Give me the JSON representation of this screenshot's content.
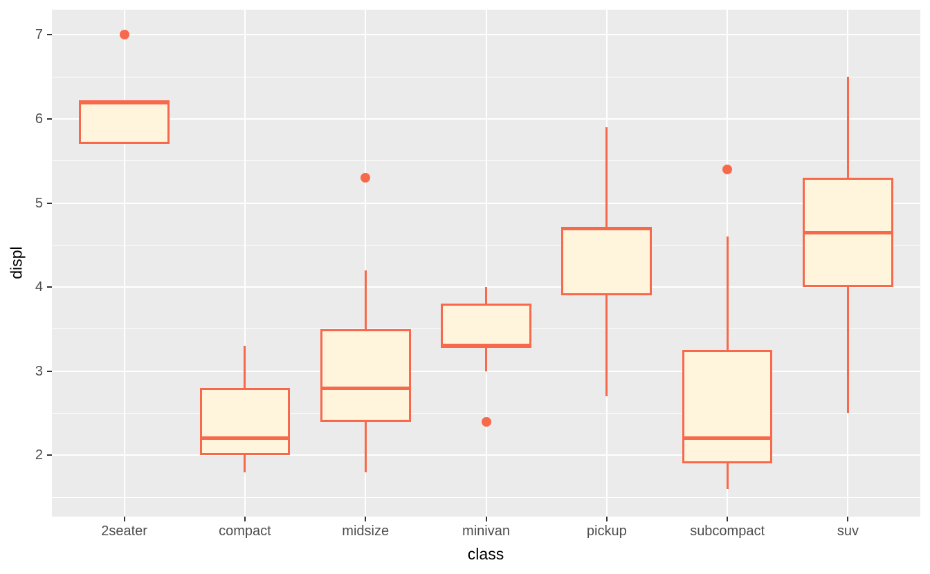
{
  "chart_data": {
    "type": "boxplot",
    "title": "",
    "xlabel": "class",
    "ylabel": "displ",
    "categories": [
      "2seater",
      "compact",
      "midsize",
      "minivan",
      "pickup",
      "subcompact",
      "suv"
    ],
    "boxes": [
      {
        "category": "2seater",
        "whisker_low": 5.7,
        "q1": 5.7,
        "median": 6.2,
        "q3": 6.2,
        "whisker_high": 6.2,
        "outliers": [
          7.0
        ]
      },
      {
        "category": "compact",
        "whisker_low": 1.8,
        "q1": 2.0,
        "median": 2.2,
        "q3": 2.8,
        "whisker_high": 3.3,
        "outliers": []
      },
      {
        "category": "midsize",
        "whisker_low": 1.8,
        "q1": 2.4,
        "median": 2.8,
        "q3": 3.5,
        "whisker_high": 4.2,
        "outliers": [
          5.3
        ]
      },
      {
        "category": "minivan",
        "whisker_low": 3.0,
        "q1": 3.3,
        "median": 3.3,
        "q3": 3.8,
        "whisker_high": 4.0,
        "outliers": [
          2.4
        ]
      },
      {
        "category": "pickup",
        "whisker_low": 2.7,
        "q1": 3.9,
        "median": 4.7,
        "q3": 4.7,
        "whisker_high": 5.9,
        "outliers": []
      },
      {
        "category": "subcompact",
        "whisker_low": 1.6,
        "q1": 1.9,
        "median": 2.2,
        "q3": 3.25,
        "whisker_high": 4.6,
        "outliers": [
          5.4
        ]
      },
      {
        "category": "suv",
        "whisker_low": 2.5,
        "q1": 4.0,
        "median": 4.65,
        "q3": 5.3,
        "whisker_high": 6.5,
        "outliers": []
      }
    ],
    "y_ticks": [
      2,
      3,
      4,
      5,
      6,
      7
    ],
    "y_minor_ticks": [
      1.5,
      2.5,
      3.5,
      4.5,
      5.5,
      6.5
    ],
    "ylim": [
      1.27,
      7.3
    ],
    "grid": "on",
    "legend": "off",
    "colors": {
      "box_stroke": "#F8694C",
      "box_fill": "#FEF5DC",
      "panel_background": "#EBEBEB",
      "grid_major": "#FFFFFF",
      "grid_minor": "#FFFFFF",
      "tick_text": "#4D4D4D",
      "axis_title_text": "#000000",
      "tick_mark": "#333333"
    }
  }
}
